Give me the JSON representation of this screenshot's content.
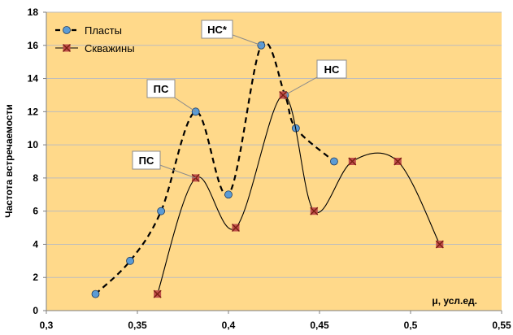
{
  "chart_data": {
    "type": "scatter",
    "xlabel": "μ, усл.ед.",
    "ylabel": "Частота встречаемости",
    "xlim": [
      0.3,
      0.55
    ],
    "ylim": [
      0,
      18
    ],
    "x_ticks": [
      0.3,
      0.35,
      0.4,
      0.45,
      0.5,
      0.55
    ],
    "x_tick_labels": [
      "0,3",
      "0,35",
      "0,4",
      "0,45",
      "0,5",
      "0,55"
    ],
    "y_ticks": [
      0,
      2,
      4,
      6,
      8,
      10,
      12,
      14,
      16,
      18
    ],
    "y_tick_labels": [
      "0",
      "2",
      "4",
      "6",
      "8",
      "10",
      "12",
      "14",
      "16",
      "18"
    ],
    "grid": "horizontal",
    "legend_position": "top-left",
    "background_color": "#ffd98a",
    "series": [
      {
        "name": "Пласты",
        "line_style": "dashed",
        "marker": "circle",
        "marker_color": "#5b9bd5",
        "x": [
          0.327,
          0.346,
          0.363,
          0.382,
          0.4,
          0.418,
          0.431,
          0.437,
          0.458
        ],
        "y": [
          1,
          3,
          6,
          12,
          7,
          16,
          13,
          11,
          9
        ]
      },
      {
        "name": "Скважины",
        "line_style": "solid",
        "marker": "x-square",
        "marker_color": "#c0504d",
        "x": [
          0.361,
          0.382,
          0.404,
          0.43,
          0.447,
          0.468,
          0.493,
          0.516
        ],
        "y": [
          1,
          8,
          5,
          13,
          6,
          9,
          9,
          4
        ]
      }
    ],
    "annotations": [
      {
        "text": "НС*",
        "x": 0.418,
        "y": 16
      },
      {
        "text": "НС",
        "x": 0.431,
        "y": 13
      },
      {
        "text": "ПС",
        "x": 0.382,
        "y": 12
      },
      {
        "text": "ПС",
        "x": 0.382,
        "y": 8
      }
    ]
  }
}
